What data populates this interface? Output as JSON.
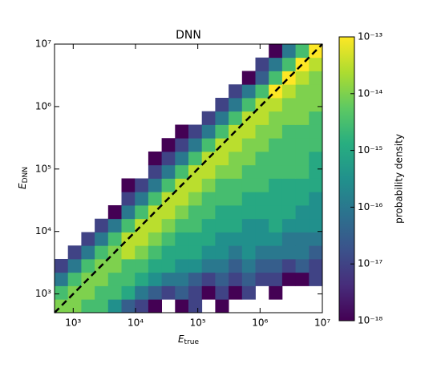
{
  "chart_data": {
    "type": "hist2d",
    "title": "DNN",
    "xlabel": [
      "E",
      "true"
    ],
    "ylabel": [
      "E",
      "DNN"
    ],
    "colorbar_label": "probability density",
    "xscale": "log",
    "yscale": "log",
    "colorscale": "log",
    "colormap": "viridis",
    "xlim": [
      501,
      10000000
    ],
    "ylim": [
      501,
      10000000
    ],
    "clim": [
      1e-18,
      1e-13
    ],
    "xticks": [
      {
        "value": 1000,
        "label": "10³"
      },
      {
        "value": 10000,
        "label": "10⁴"
      },
      {
        "value": 100000,
        "label": "10⁵"
      },
      {
        "value": 1000000,
        "label": "10⁶"
      },
      {
        "value": 10000000,
        "label": "10⁷"
      }
    ],
    "yticks": [
      {
        "value": 1000,
        "label": "10³"
      },
      {
        "value": 10000,
        "label": "10⁴"
      },
      {
        "value": 100000,
        "label": "10⁵"
      },
      {
        "value": 1000000,
        "label": "10⁶"
      },
      {
        "value": 10000000,
        "label": "10⁷"
      }
    ],
    "cticks": [
      {
        "value": 1e-18,
        "label": "10⁻¹⁸"
      },
      {
        "value": 1e-17,
        "label": "10⁻¹⁷"
      },
      {
        "value": 1e-16,
        "label": "10⁻¹⁶"
      },
      {
        "value": 1e-15,
        "label": "10⁻¹⁵"
      },
      {
        "value": 1e-14,
        "label": "10⁻¹⁴"
      },
      {
        "value": 1e-13,
        "label": "10⁻¹³"
      }
    ],
    "xbins": [
      501,
      822,
      1349,
      2213,
      3631,
      5957,
      9772,
      16032,
      26303,
      43152,
      70795,
      116145,
      190546,
      312608,
      512861,
      841395,
      1380384,
      2264644,
      3715352,
      6095369,
      10000000
    ],
    "ybins": [
      501,
      822,
      1349,
      2213,
      3631,
      5957,
      9772,
      16032,
      26303,
      43152,
      70795,
      116145,
      190546,
      312608,
      512861,
      841395,
      1380384,
      2264644,
      3715352,
      6095369,
      10000000
    ],
    "z": [
      [
        1e-14,
        1e-14,
        3e-15,
        3e-15,
        3e-16,
        3e-17,
        1e-17,
        1e-18,
        null,
        1e-18,
        1e-17,
        null,
        1e-18,
        null,
        null,
        null,
        null,
        null,
        null,
        null
      ],
      [
        3e-15,
        1e-14,
        1e-14,
        3e-15,
        3e-15,
        1e-15,
        1e-16,
        3e-17,
        1e-17,
        3e-17,
        1e-17,
        1e-18,
        1e-17,
        1e-18,
        1e-17,
        null,
        1e-18,
        null,
        null,
        null
      ],
      [
        1e-16,
        3e-15,
        1e-14,
        1e-14,
        3e-15,
        3e-15,
        1e-15,
        3e-16,
        1e-16,
        1e-16,
        3e-17,
        1e-17,
        3e-17,
        1e-17,
        3e-17,
        1e-17,
        1e-17,
        1e-18,
        1e-18,
        1e-17
      ],
      [
        1e-17,
        1e-16,
        3e-15,
        1e-14,
        1e-14,
        3e-15,
        3e-15,
        1e-15,
        1e-15,
        3e-16,
        3e-16,
        1e-16,
        1e-16,
        3e-17,
        1e-16,
        3e-17,
        3e-17,
        1e-17,
        3e-17,
        1e-17
      ],
      [
        null,
        1e-17,
        1e-16,
        3e-15,
        1e-14,
        3e-14,
        1e-14,
        3e-15,
        1e-15,
        1e-15,
        1e-15,
        3e-16,
        3e-16,
        1e-16,
        3e-16,
        1e-16,
        1e-16,
        1e-16,
        1e-16,
        3e-17
      ],
      [
        null,
        null,
        1e-17,
        1e-16,
        3e-15,
        3e-14,
        3e-14,
        1e-14,
        3e-15,
        1e-15,
        1e-15,
        1e-15,
        3e-16,
        3e-16,
        3e-16,
        3e-16,
        3e-16,
        1e-16,
        1e-16,
        1e-16
      ],
      [
        null,
        null,
        null,
        1e-17,
        1e-16,
        3e-15,
        3e-14,
        3e-14,
        1e-14,
        3e-15,
        3e-15,
        1e-15,
        1e-15,
        1e-15,
        3e-16,
        3e-16,
        1e-15,
        3e-16,
        3e-16,
        3e-16
      ],
      [
        null,
        null,
        null,
        null,
        1e-18,
        1e-16,
        3e-15,
        3e-14,
        3e-14,
        1e-14,
        3e-15,
        3e-15,
        1e-15,
        1e-15,
        1e-15,
        1e-15,
        1e-15,
        1e-15,
        3e-16,
        3e-16
      ],
      [
        null,
        null,
        null,
        null,
        null,
        1e-17,
        1e-16,
        3e-15,
        3e-14,
        3e-14,
        1e-14,
        3e-15,
        3e-15,
        3e-15,
        1e-15,
        1e-15,
        1e-15,
        1e-15,
        1e-15,
        3e-16
      ],
      [
        null,
        null,
        null,
        null,
        null,
        1e-18,
        1e-17,
        1e-16,
        3e-15,
        3e-14,
        3e-14,
        1e-14,
        3e-15,
        3e-15,
        3e-15,
        3e-15,
        1e-15,
        1e-15,
        1e-15,
        1e-15
      ],
      [
        null,
        null,
        null,
        null,
        null,
        null,
        null,
        1e-17,
        1e-16,
        3e-15,
        3e-14,
        3e-14,
        1e-14,
        1e-14,
        3e-15,
        3e-15,
        3e-15,
        3e-15,
        3e-15,
        1e-15
      ],
      [
        null,
        null,
        null,
        null,
        null,
        null,
        null,
        1e-18,
        1e-17,
        1e-16,
        3e-15,
        3e-14,
        3e-14,
        1e-14,
        1e-14,
        3e-15,
        3e-15,
        3e-15,
        3e-15,
        1e-15
      ],
      [
        null,
        null,
        null,
        null,
        null,
        null,
        null,
        null,
        1e-18,
        1e-17,
        1e-16,
        3e-15,
        3e-14,
        3e-14,
        1e-14,
        1e-14,
        3e-15,
        3e-15,
        3e-15,
        3e-15
      ],
      [
        null,
        null,
        null,
        null,
        null,
        null,
        null,
        null,
        null,
        1e-18,
        1e-17,
        1e-16,
        3e-15,
        3e-14,
        3e-14,
        1e-14,
        1e-14,
        3e-15,
        3e-15,
        3e-15
      ],
      [
        null,
        null,
        null,
        null,
        null,
        null,
        null,
        null,
        null,
        null,
        null,
        1e-17,
        1e-16,
        3e-15,
        3e-14,
        3e-14,
        1e-14,
        1e-14,
        1e-14,
        3e-15
      ],
      [
        null,
        null,
        null,
        null,
        null,
        null,
        null,
        null,
        null,
        null,
        null,
        null,
        1e-17,
        1e-16,
        3e-15,
        3e-14,
        3e-14,
        1e-14,
        1e-14,
        1e-14
      ],
      [
        null,
        null,
        null,
        null,
        null,
        null,
        null,
        null,
        null,
        null,
        null,
        null,
        null,
        1e-17,
        1e-16,
        3e-15,
        1e-13,
        3e-14,
        1e-14,
        1e-14
      ],
      [
        null,
        null,
        null,
        null,
        null,
        null,
        null,
        null,
        null,
        null,
        null,
        null,
        null,
        null,
        1e-18,
        3e-17,
        3e-15,
        1e-13,
        3e-14,
        1e-14
      ],
      [
        null,
        null,
        null,
        null,
        null,
        null,
        null,
        null,
        null,
        null,
        null,
        null,
        null,
        null,
        null,
        1e-17,
        1e-16,
        3e-15,
        1e-13,
        3e-14
      ],
      [
        null,
        null,
        null,
        null,
        null,
        null,
        null,
        null,
        null,
        null,
        null,
        null,
        null,
        null,
        null,
        null,
        1e-18,
        1e-16,
        3e-15,
        1e-13
      ]
    ]
  }
}
